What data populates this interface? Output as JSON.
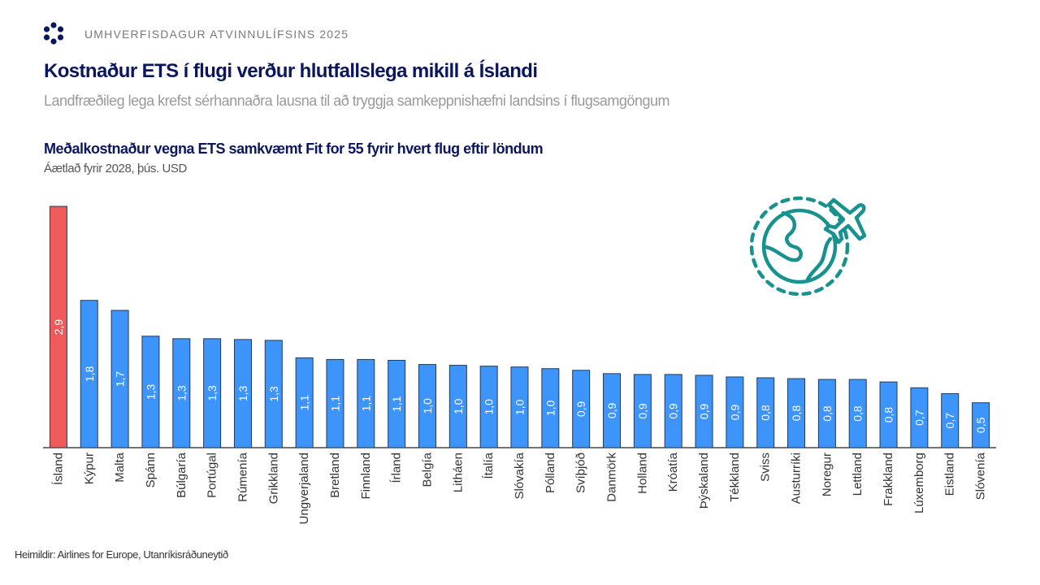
{
  "header": {
    "event_label": "UMHVERFISDAGUR ATVINNULÍFSINS 2025",
    "logo_icon": "flower-dots-logo",
    "title": "Kostnaður ETS í flugi verður hlutfallslega mikill á Íslandi",
    "subtitle": "Landfræðileg lega krefst sérhannaðra lausna til að tryggja samkeppnishæfni landsins í flugsamgöngum"
  },
  "decor": {
    "icon": "globe-airplane-icon",
    "icon_color": "#17928f"
  },
  "footer": {
    "source": "Heimildir: Airlines for Europe, Utanríkisráðuneytið"
  },
  "chart_data": {
    "type": "bar",
    "title": "Meðalkostnaður vegna ETS samkvæmt Fit for 55 fyrir hvert flug eftir löndum",
    "subtitle": "Áætlað fyrir 2028, þús. USD",
    "xlabel": "",
    "ylabel": "",
    "ylim": [
      0,
      2.9
    ],
    "grid": false,
    "legend": "none",
    "highlight_color": "#f05a5a",
    "bar_color": "#3d95fb",
    "outline_color": "#233a57",
    "categories": [
      "Ísland",
      "Kýpur",
      "Malta",
      "Spánn",
      "Búlgaría",
      "Portúgal",
      "Rúmenía",
      "Grikkland",
      "Ungverjaland",
      "Bretland",
      "Finnland",
      "Írland",
      "Belgía",
      "Litháen",
      "Ítalía",
      "Slóvakía",
      "Pólland",
      "Svíþjóð",
      "Danmörk",
      "Holland",
      "Króatía",
      "Þýskaland",
      "Tékkland",
      "Sviss",
      "Austurríki",
      "Noregur",
      "Lettland",
      "Frakkland",
      "Lúxemborg",
      "Eistland",
      "Slóvenía"
    ],
    "values": [
      2.9,
      1.77,
      1.65,
      1.34,
      1.31,
      1.31,
      1.3,
      1.29,
      1.08,
      1.06,
      1.06,
      1.05,
      1.0,
      0.99,
      0.98,
      0.97,
      0.95,
      0.93,
      0.89,
      0.88,
      0.88,
      0.87,
      0.85,
      0.84,
      0.83,
      0.82,
      0.82,
      0.79,
      0.72,
      0.65,
      0.54
    ],
    "labels": [
      "2,9",
      "1,8",
      "1,7",
      "1,3",
      "1,3",
      "1,3",
      "1,3",
      "1,3",
      "1,1",
      "1,1",
      "1,1",
      "1,1",
      "1,0",
      "1,0",
      "1,0",
      "1,0",
      "1,0",
      "0,9",
      "0,9",
      "0,9",
      "0,9",
      "0,9",
      "0,9",
      "0,8",
      "0,8",
      "0,8",
      "0,8",
      "0,8",
      "0,7",
      "0,7",
      "0,5"
    ],
    "highlight": [
      "Ísland"
    ]
  }
}
